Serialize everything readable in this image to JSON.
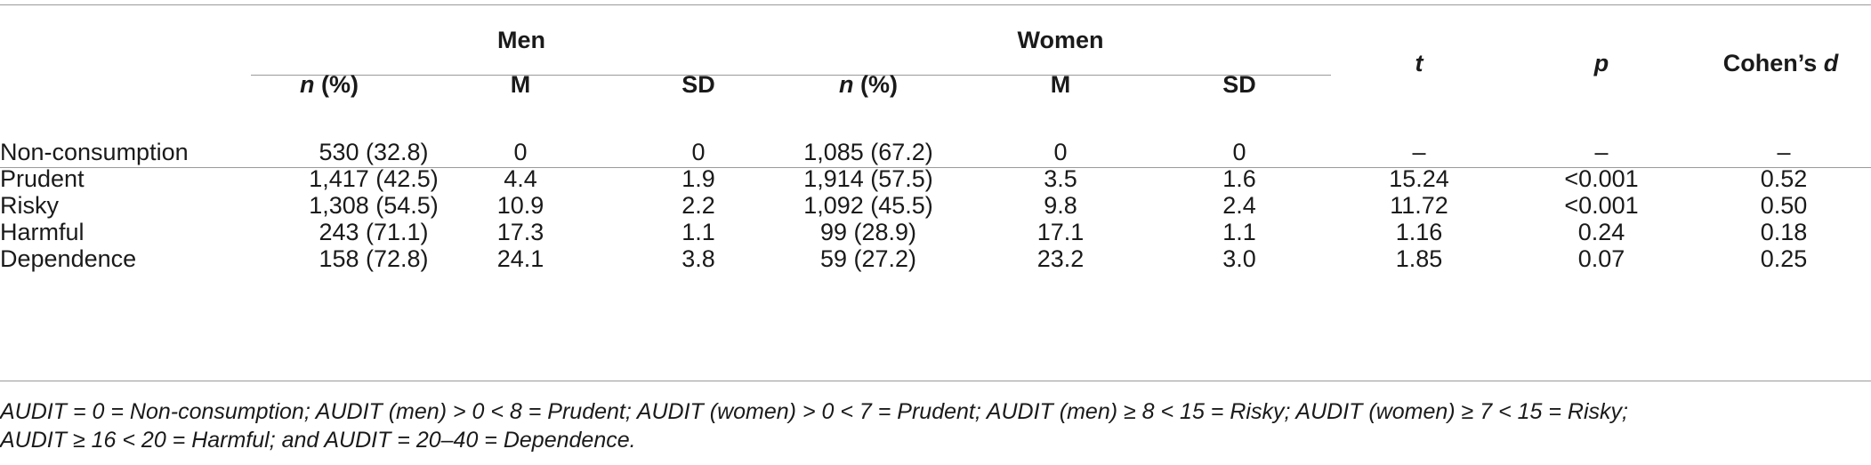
{
  "table": {
    "group_headers": [
      "Men",
      "Women"
    ],
    "column_headers": {
      "n_pct_italic": "n",
      "n_pct_rest": " (%)",
      "m": "M",
      "sd": "SD",
      "t": "t",
      "p": "p",
      "d_prefix": "Cohen’s ",
      "d_italic": "d"
    },
    "rows": [
      {
        "label": "Non-consumption",
        "men_n": "530 (32.8)",
        "men_m": "0",
        "men_sd": "0",
        "women_n": "1,085 (67.2)",
        "women_m": "0",
        "women_sd": "0",
        "t": "–",
        "p": "–",
        "d": "–"
      },
      {
        "label": "Prudent",
        "men_n": "1,417 (42.5)",
        "men_m": "4.4",
        "men_sd": "1.9",
        "women_n": "1,914 (57.5)",
        "women_m": "3.5",
        "women_sd": "1.6",
        "t": "15.24",
        "p": "<0.001",
        "d": "0.52"
      },
      {
        "label": "Risky",
        "men_n": "1,308 (54.5)",
        "men_m": "10.9",
        "men_sd": "2.2",
        "women_n": "1,092 (45.5)",
        "women_m": "9.8",
        "women_sd": "2.4",
        "t": "11.72",
        "p": "<0.001",
        "d": "0.50"
      },
      {
        "label": "Harmful",
        "men_n": "243 (71.1)",
        "men_m": "17.3",
        "men_sd": "1.1",
        "women_n": "99 (28.9)",
        "women_m": "17.1",
        "women_sd": "1.1",
        "t": "1.16",
        "p": "0.24",
        "d": "0.18"
      },
      {
        "label": "Dependence",
        "men_n": "158 (72.8)",
        "men_m": "24.1",
        "men_sd": "3.8",
        "women_n": "59 (27.2)",
        "women_m": "23.2",
        "women_sd": "3.0",
        "t": "1.85",
        "p": "0.07",
        "d": "0.25"
      }
    ],
    "footnote": [
      "AUDIT = 0 = Non-consumption; AUDIT (men) > 0 < 8 = Prudent; AUDIT (women) > 0 < 7 = Prudent; AUDIT (men) ≥ 8 < 15 = Risky; AUDIT (women) ≥ 7 < 15 = Risky;",
      "AUDIT ≥ 16 < 20 = Harmful; and AUDIT = 20–40 = Dependence."
    ]
  }
}
